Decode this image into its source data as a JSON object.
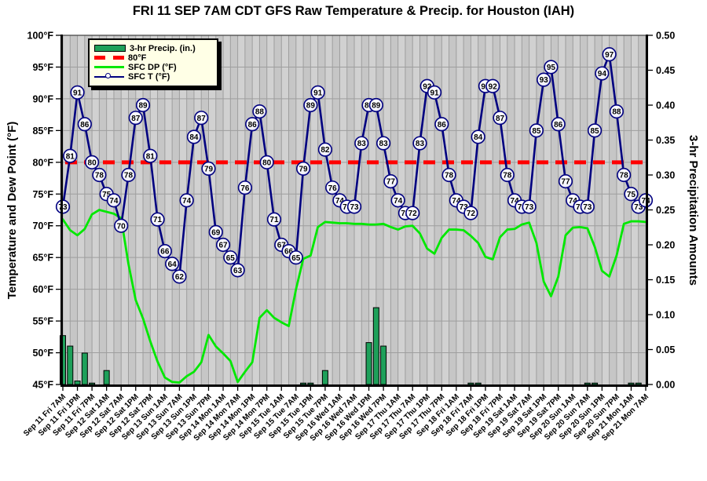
{
  "legend": {
    "items": [
      {
        "label": "3-hr Precip. (in.)"
      },
      {
        "label": "80°F"
      },
      {
        "label": "SFC DP (°F)"
      },
      {
        "label": "SFC T (°F)"
      }
    ]
  },
  "chart_data": {
    "type": "combo line+bar",
    "title": "FRI 11 SEP 7AM CDT GFS Raw Temperature & Precip. for Houston (IAH)",
    "ylabel_left": "Temperature and Dew Point (°F)",
    "ylabel_right": "3-hr Precipitation Amounts",
    "ylim_left": [
      45,
      100
    ],
    "ylim_right": [
      0,
      0.5
    ],
    "x_interval_hours": 3,
    "grid": true,
    "legend_position": "top-left",
    "y_ticks_left": [
      "100°F",
      "95°F",
      "90°F",
      "85°F",
      "80°F",
      "75°F",
      "70°F",
      "65°F",
      "60°F",
      "55°F",
      "50°F",
      "45°F"
    ],
    "y_ticks_right": [
      "0.50",
      "0.45",
      "0.40",
      "0.35",
      "0.30",
      "0.25",
      "0.20",
      "0.15",
      "0.10",
      "0.05",
      "0.00"
    ],
    "x_tick_labels": [
      "Sep 11 Fri 7AM",
      "Sep 11 Fri 1PM",
      "Sep 11 Fri 7PM",
      "Sep 12 Sat 1AM",
      "Sep 12 Sat 7AM",
      "Sep 12 Sat 1PM",
      "Sep 12 Sat 7PM",
      "Sep 13 Sun 1AM",
      "Sep 13 Sun 7AM",
      "Sep 13 Sun 1PM",
      "Sep 13 Sun 7PM",
      "Sep 14 Mon 1AM",
      "Sep 14 Mon 7AM",
      "Sep 14 Mon 1PM",
      "Sep 14 Mon 7PM",
      "Sep 15 Tue 1AM",
      "Sep 15 Tue 7AM",
      "Sep 15 Tue 1PM",
      "Sep 15 Tue 7PM",
      "Sep 16 Wed 1AM",
      "Sep 16 Wed 7AM",
      "Sep 16 Wed 1PM",
      "Sep 16 Wed 7PM",
      "Sep 17 Thu 1AM",
      "Sep 17 Thu 7AM",
      "Sep 17 Thu 1PM",
      "Sep 17 Thu 7PM",
      "Sep 18 Fri 1AM",
      "Sep 18 Fri 7AM",
      "Sep 18 Fri 1PM",
      "Sep 18 Fri 7PM",
      "Sep 19 Sat 1AM",
      "Sep 19 Sat 7AM",
      "Sep 19 Sat 1PM",
      "Sep 19 Sat 7PM",
      "Sep 20 Sun 1AM",
      "Sep 20 Sun 7AM",
      "Sep 20 Sun 1PM",
      "Sep 20 Sun 7PM",
      "Sep 21 Mon 1AM",
      "Sep 21 Mon 7AM"
    ],
    "series": [
      {
        "name": "SFC T (°F)",
        "type": "line",
        "axis": "left",
        "color": "#000080",
        "marker": "labeled-circle",
        "values": [
          73,
          81,
          91,
          86,
          80,
          78,
          75,
          74,
          70,
          78,
          87,
          89,
          81,
          71,
          66,
          64,
          62,
          74,
          84,
          87,
          79,
          69,
          67,
          65,
          63,
          76,
          86,
          88,
          80,
          71,
          67,
          66,
          65,
          79,
          89,
          91,
          82,
          76,
          74,
          73,
          73,
          83,
          89,
          89,
          83,
          77,
          74,
          72,
          72,
          83,
          92,
          91,
          86,
          78,
          74,
          73,
          72,
          84,
          92,
          92,
          87,
          78,
          74,
          73,
          73,
          85,
          93,
          95,
          86,
          77,
          74,
          73,
          73,
          85,
          94,
          97,
          88,
          78,
          75,
          73,
          74
        ]
      },
      {
        "name": "SFC DP (°F)",
        "type": "line",
        "axis": "left",
        "color": "#00E800",
        "values": [
          71,
          69.3,
          68.5,
          69.5,
          71.8,
          72.5,
          72.2,
          71.9,
          71.2,
          64,
          58.3,
          55.4,
          51.8,
          48.6,
          46.1,
          45.4,
          45.3,
          46.3,
          47,
          48.5,
          52.8,
          51,
          49.9,
          48.7,
          45.4,
          47,
          48.5,
          55.5,
          56.7,
          55.5,
          54.8,
          54.2,
          60,
          64.8,
          65.3,
          69.8,
          70.6,
          70.5,
          70.4,
          70.4,
          70.3,
          70.3,
          70.2,
          70.2,
          70.3,
          69.8,
          69.4,
          69.9,
          70,
          68.8,
          66.4,
          65.6,
          68.1,
          69.4,
          69.4,
          69.3,
          68.4,
          67.3,
          65.1,
          64.7,
          68.2,
          69.4,
          69.5,
          70.2,
          70.5,
          67.3,
          61.2,
          58.9,
          62,
          68.5,
          69.7,
          69.8,
          69.6,
          66.7,
          62.9,
          62,
          65.3,
          70.3,
          70.7,
          70.7,
          70.6
        ]
      },
      {
        "name": "80°F",
        "type": "reference-line",
        "axis": "left",
        "color": "#FF0000",
        "value": 80
      },
      {
        "name": "3-hr Precip. (in.)",
        "type": "bar",
        "axis": "right",
        "color": "#1EA05A",
        "values": [
          0.07,
          0.055,
          0.005,
          0.045,
          0.002,
          0,
          0.02,
          0,
          0,
          0,
          0,
          0,
          0,
          0,
          0,
          0,
          0,
          0,
          0,
          0,
          0,
          0,
          0,
          0,
          0,
          0,
          0,
          0,
          0,
          0,
          0,
          0,
          0,
          0.002,
          0.002,
          0,
          0.02,
          0,
          0,
          0,
          0,
          0,
          0.06,
          0.11,
          0.055,
          0,
          0,
          0,
          0,
          0,
          0,
          0,
          0,
          0,
          0,
          0,
          0.002,
          0.002,
          0,
          0,
          0,
          0,
          0,
          0,
          0,
          0,
          0,
          0,
          0,
          0,
          0,
          0,
          0.002,
          0.002,
          0,
          0,
          0,
          0,
          0.002,
          0.002,
          0
        ]
      }
    ]
  }
}
